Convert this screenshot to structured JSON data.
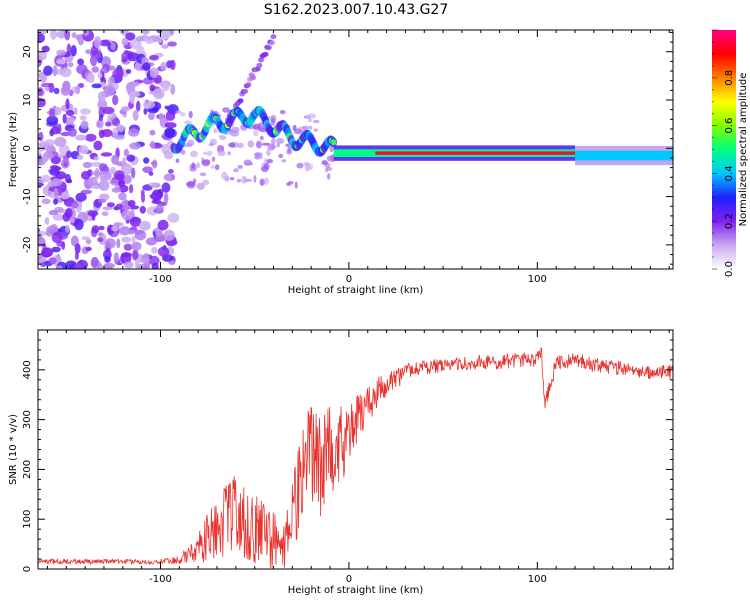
{
  "title": "S162.2023.007.10.43.G27",
  "chart_data": [
    {
      "type": "heatmap",
      "xlabel": "Height of straight line (km)",
      "ylabel": "Frequency (Hz)",
      "xlim": [
        -165,
        172
      ],
      "ylim": [
        -25,
        24.5
      ],
      "xticks": [
        -100,
        0,
        100
      ],
      "yticks": [
        -20,
        -10,
        0,
        10,
        20
      ],
      "colorbar": {
        "label": "Normalized spectral amplitude",
        "range": [
          0,
          1
        ],
        "ticks": [
          0.0,
          0.2,
          0.4,
          0.6,
          0.8
        ],
        "colors": [
          "#ffffff",
          "#c8a8f0",
          "#8020f0",
          "#2020ff",
          "#00c8ff",
          "#00ff80",
          "#80ff00",
          "#ffff00",
          "#ff8000",
          "#ff0000",
          "#ff0080"
        ]
      },
      "features": {
        "noise_region_x": [
          -165,
          -93
        ],
        "early_segment_x": [
          -93,
          -8
        ],
        "early_peak_frequency_hz": [
          1,
          5,
          7,
          2,
          0
        ],
        "strong_line_x": [
          -8,
          120
        ],
        "strong_line_frequency_hz": -1,
        "strong_line_amplitude": 0.95,
        "tail_x": [
          120,
          172
        ],
        "tail_frequency_hz": -1.5,
        "tail_amplitude": 0.4,
        "diagonal_feature": {
          "x": [
            -65,
            -40
          ],
          "frequency_hz": [
            5,
            23
          ]
        }
      }
    },
    {
      "type": "line",
      "xlabel": "Height of straight line (km)",
      "ylabel": "SNR (10 * v/v)",
      "xlim": [
        -165,
        172
      ],
      "ylim": [
        0,
        480
      ],
      "xticks": [
        -100,
        0,
        100
      ],
      "yticks": [
        0,
        100,
        200,
        300,
        400
      ],
      "color": "#e8322d",
      "x": [
        -165,
        -100,
        -90,
        -80,
        -70,
        -60,
        -50,
        -40,
        -35,
        -30,
        -25,
        -20,
        -15,
        -10,
        -5,
        0,
        5,
        10,
        15,
        20,
        25,
        30,
        40,
        50,
        60,
        70,
        80,
        90,
        100,
        102,
        104,
        110,
        120,
        130,
        140,
        150,
        160,
        172
      ],
      "y": [
        15,
        15,
        18,
        40,
        90,
        110,
        80,
        60,
        40,
        90,
        210,
        230,
        200,
        240,
        250,
        270,
        300,
        330,
        355,
        370,
        380,
        395,
        405,
        410,
        415,
        415,
        415,
        420,
        420,
        440,
        330,
        415,
        420,
        410,
        405,
        400,
        395,
        395
      ],
      "spread": [
        5,
        5,
        8,
        30,
        70,
        80,
        70,
        60,
        40,
        80,
        100,
        110,
        100,
        90,
        80,
        70,
        50,
        40,
        30,
        25,
        20,
        18,
        15,
        15,
        15,
        15,
        15,
        15,
        15,
        20,
        15,
        15,
        15,
        15,
        15,
        15,
        15,
        15
      ]
    }
  ]
}
